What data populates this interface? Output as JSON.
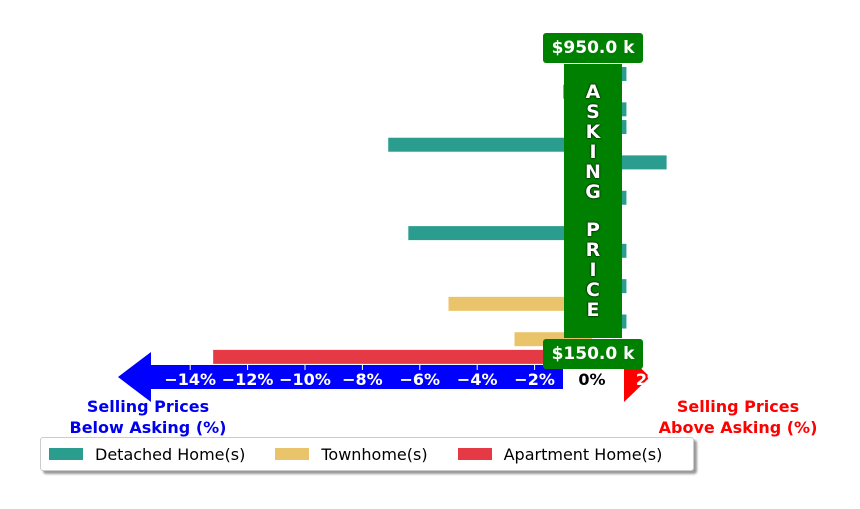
{
  "chart_data": {
    "type": "bar",
    "orientation": "horizontal",
    "x_ticks": [
      "−14%",
      "−12%",
      "−10%",
      "−8%",
      "−6%",
      "−4%",
      "−2%",
      "0%",
      "2%"
    ],
    "x_tick_values": [
      -14,
      -12,
      -10,
      -8,
      -6,
      -4,
      -2,
      0,
      2
    ],
    "xlim": [
      -14.8,
      2.2
    ],
    "bars": [
      {
        "type": "Detached Home(s)",
        "value": 1.2
      },
      {
        "type": "Detached Home(s)",
        "value": -1.0
      },
      {
        "type": "Detached Home(s)",
        "value": 1.2
      },
      {
        "type": "Detached Home(s)",
        "value": 1.2
      },
      {
        "type": "Detached Home(s)",
        "value": -7.1
      },
      {
        "type": "Detached Home(s)",
        "value": 2.6
      },
      {
        "type": "Detached Home(s)",
        "value": -0.8
      },
      {
        "type": "Detached Home(s)",
        "value": 1.2
      },
      {
        "type": "Detached Home(s)",
        "value": -0.1
      },
      {
        "type": "Detached Home(s)",
        "value": -6.4
      },
      {
        "type": "Detached Home(s)",
        "value": 1.2
      },
      {
        "type": "Detached Home(s)",
        "value": -0.6
      },
      {
        "type": "Detached Home(s)",
        "value": 1.2
      },
      {
        "type": "Townhome(s)",
        "value": -5.0
      },
      {
        "type": "Detached Home(s)",
        "value": 1.2
      },
      {
        "type": "Townhome(s)",
        "value": -2.7
      },
      {
        "type": "Apartment Home(s)",
        "value": -13.2
      }
    ],
    "legend": [
      {
        "label": "Detached Home(s)",
        "color": "#2a9d8f"
      },
      {
        "label": "Townhome(s)",
        "color": "#e9c46a"
      },
      {
        "label": "Apartment Home(s)",
        "color": "#e63946"
      }
    ],
    "legend_position": "bottom-left",
    "price_top": "$950.0 k",
    "price_bottom": "$150.0 k",
    "asking_word_1": "ASKING",
    "asking_word_2": "PRICE",
    "note_below": "Selling Prices\nBelow Asking (%)",
    "note_above": "Selling Prices\nAbove Asking (%)",
    "arrow_colors": {
      "below": "#0000ff",
      "above": "#ff0000"
    },
    "band_color": "#008000",
    "grid": false
  }
}
